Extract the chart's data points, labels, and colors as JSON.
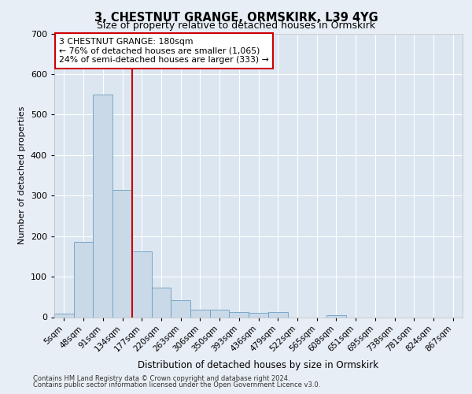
{
  "title_line1": "3, CHESTNUT GRANGE, ORMSKIRK, L39 4YG",
  "title_line2": "Size of property relative to detached houses in Ormskirk",
  "xlabel": "Distribution of detached houses by size in Ormskirk",
  "ylabel": "Number of detached properties",
  "footer_line1": "Contains HM Land Registry data © Crown copyright and database right 2024.",
  "footer_line2": "Contains public sector information licensed under the Open Government Licence v3.0.",
  "categories": [
    "5sqm",
    "48sqm",
    "91sqm",
    "134sqm",
    "177sqm",
    "220sqm",
    "263sqm",
    "306sqm",
    "350sqm",
    "393sqm",
    "436sqm",
    "479sqm",
    "522sqm",
    "565sqm",
    "608sqm",
    "651sqm",
    "695sqm",
    "738sqm",
    "781sqm",
    "824sqm",
    "867sqm"
  ],
  "values": [
    8,
    186,
    550,
    315,
    163,
    72,
    42,
    18,
    19,
    12,
    11,
    12,
    0,
    0,
    5,
    0,
    0,
    0,
    0,
    0,
    0
  ],
  "bar_color": "#c9d9e8",
  "bar_edge_color": "#6a9fc0",
  "vline_x_index": 4,
  "vline_color": "#cc0000",
  "ylim": [
    0,
    700
  ],
  "yticks": [
    0,
    100,
    200,
    300,
    400,
    500,
    600,
    700
  ],
  "annotation_text": "3 CHESTNUT GRANGE: 180sqm\n← 76% of detached houses are smaller (1,065)\n24% of semi-detached houses are larger (333) →",
  "annotation_box_color": "#cc0000",
  "background_color": "#e8eef5",
  "plot_bg_color": "#dce6f0"
}
